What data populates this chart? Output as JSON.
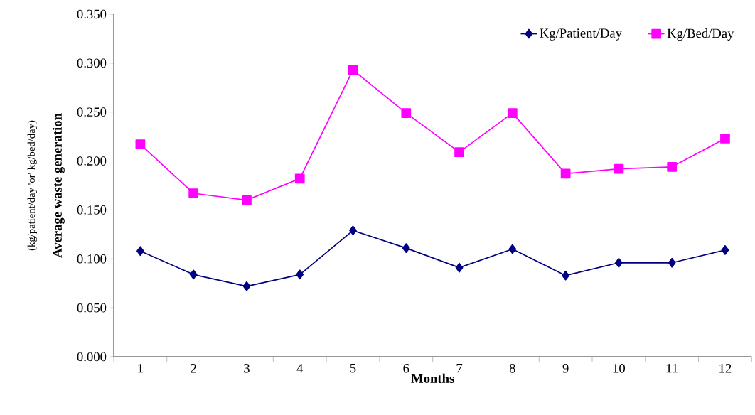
{
  "chart_data": {
    "type": "line",
    "xlabel": "Months",
    "ylabel": "Average waste generation",
    "annotations": [
      "(kg/patient/day 'or' kg/bed/day)"
    ],
    "categories": [
      "1",
      "2",
      "3",
      "4",
      "5",
      "6",
      "7",
      "8",
      "9",
      "10",
      "11",
      "12"
    ],
    "series": [
      {
        "name": "Kg/Patient/Day",
        "color": "#000080",
        "marker": "diamond",
        "values": [
          0.108,
          0.084,
          0.072,
          0.084,
          0.129,
          0.111,
          0.091,
          0.11,
          0.083,
          0.096,
          0.096,
          0.109
        ]
      },
      {
        "name": "Kg/Bed/Day",
        "color": "#ff00ff",
        "marker": "square",
        "values": [
          0.217,
          0.167,
          0.16,
          0.182,
          0.293,
          0.249,
          0.209,
          0.249,
          0.187,
          0.192,
          0.194,
          0.223
        ]
      }
    ],
    "ylim": [
      0,
      0.35
    ],
    "yticks": [
      {
        "value": 0,
        "label": "0.000"
      },
      {
        "value": 0.05,
        "label": "0.050"
      },
      {
        "value": 0.1,
        "label": "0.100"
      },
      {
        "value": 0.15,
        "label": "0.150"
      },
      {
        "value": 0.2,
        "label": "0.200"
      },
      {
        "value": 0.25,
        "label": "0.250"
      },
      {
        "value": 0.3,
        "label": "0.300"
      },
      {
        "value": 0.35,
        "label": "0.350"
      }
    ],
    "grid": false,
    "legend": "top right",
    "line_style": "solid"
  }
}
